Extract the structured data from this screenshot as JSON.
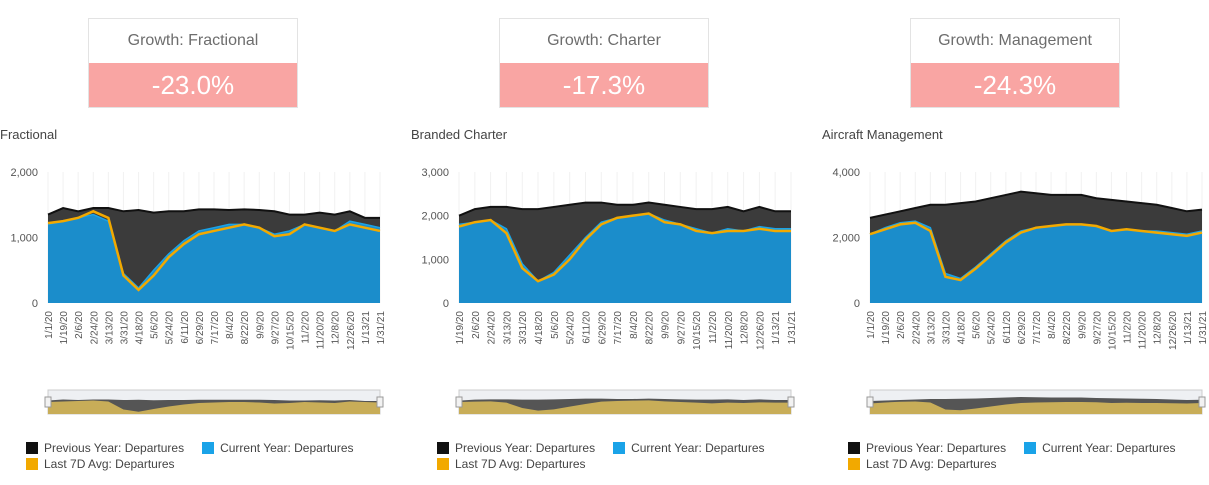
{
  "colors": {
    "previous_year": "#111111",
    "current_year": "#1aa3e8",
    "avg_line": "#f2a900",
    "current_fill": "#1b8dcb",
    "kpi_negative_bg": "#f9a5a3",
    "navigator_fill": "#c8ad58"
  },
  "kpis": [
    {
      "title": "Growth: Fractional",
      "value": "-23.0%"
    },
    {
      "title": "Growth: Charter",
      "value": "-17.3%"
    },
    {
      "title": "Growth: Management",
      "value": "-24.3%"
    }
  ],
  "legend": {
    "previous": "Previous Year: Departures",
    "current": "Current Year: Departures",
    "avg": "Last 7D Avg: Departures"
  },
  "chart_data": [
    {
      "type": "area",
      "title": "Fractional",
      "ylim": [
        0,
        2000
      ],
      "yticks": [
        "0",
        "1,000",
        "2,000"
      ],
      "ytick_values": [
        0,
        1000,
        2000
      ],
      "xtick_labels": [
        "1/1/20",
        "1/19/20",
        "2/6/20",
        "2/24/20",
        "3/13/20",
        "3/31/20",
        "4/18/20",
        "5/6/20",
        "5/24/20",
        "6/11/20",
        "6/29/20",
        "7/17/20",
        "8/4/20",
        "8/22/20",
        "9/9/20",
        "9/27/20",
        "10/15/20",
        "11/2/20",
        "11/20/20",
        "12/8/20",
        "12/26/20",
        "1/13/21",
        "1/31/21"
      ],
      "grid": "vertical",
      "legend_position": "bottom",
      "series": [
        {
          "name": "Previous Year: Departures",
          "x": [
            "1/1/20",
            "1/19/20",
            "2/6/20",
            "2/24/20",
            "3/13/20",
            "3/31/20",
            "4/18/20",
            "5/6/20",
            "5/24/20",
            "6/11/20",
            "6/29/20",
            "7/17/20",
            "8/4/20",
            "8/22/20",
            "9/9/20",
            "9/27/20",
            "10/15/20",
            "11/2/20",
            "11/20/20",
            "12/8/20",
            "12/26/20",
            "1/13/21",
            "1/31/21"
          ],
          "values": [
            1350,
            1450,
            1400,
            1450,
            1450,
            1400,
            1420,
            1380,
            1400,
            1400,
            1430,
            1430,
            1420,
            1430,
            1420,
            1400,
            1350,
            1350,
            1380,
            1350,
            1400,
            1300,
            1300
          ]
        },
        {
          "name": "Current Year: Departures",
          "x": [
            "1/1/20",
            "1/19/20",
            "2/6/20",
            "2/24/20",
            "3/13/20",
            "3/31/20",
            "4/18/20",
            "5/6/20",
            "5/24/20",
            "6/11/20",
            "6/29/20",
            "7/17/20",
            "8/4/20",
            "8/22/20",
            "9/9/20",
            "9/27/20",
            "10/15/20",
            "11/2/20",
            "11/20/20",
            "12/8/20",
            "12/26/20",
            "1/13/21",
            "1/31/21"
          ],
          "values": [
            1200,
            1250,
            1300,
            1350,
            1250,
            450,
            230,
            500,
            750,
            950,
            1100,
            1150,
            1200,
            1200,
            1150,
            1050,
            1100,
            1200,
            1150,
            1100,
            1250,
            1200,
            1150
          ]
        },
        {
          "name": "Last 7D Avg: Departures",
          "x": [
            "1/1/20",
            "1/19/20",
            "2/6/20",
            "2/24/20",
            "3/13/20",
            "3/31/20",
            "4/18/20",
            "5/6/20",
            "5/24/20",
            "6/11/20",
            "6/29/20",
            "7/17/20",
            "8/4/20",
            "8/22/20",
            "9/9/20",
            "9/27/20",
            "10/15/20",
            "11/2/20",
            "11/20/20",
            "12/8/20",
            "12/26/20",
            "1/13/21",
            "1/31/21"
          ],
          "values": [
            1220,
            1250,
            1300,
            1400,
            1300,
            420,
            200,
            420,
            700,
            900,
            1050,
            1100,
            1150,
            1200,
            1150,
            1020,
            1050,
            1200,
            1150,
            1100,
            1200,
            1150,
            1100
          ]
        }
      ]
    },
    {
      "type": "area",
      "title": "Branded Charter",
      "ylim": [
        0,
        3000
      ],
      "yticks": [
        "0",
        "1,000",
        "2,000",
        "3,000"
      ],
      "ytick_values": [
        0,
        1000,
        2000,
        3000
      ],
      "xtick_labels": [
        "1/19/20",
        "2/6/20",
        "2/24/20",
        "3/13/20",
        "3/31/20",
        "4/18/20",
        "5/6/20",
        "5/24/20",
        "6/11/20",
        "6/29/20",
        "7/17/20",
        "8/4/20",
        "8/22/20",
        "9/9/20",
        "9/27/20",
        "10/15/20",
        "11/2/20",
        "11/20/20",
        "12/8/20",
        "12/26/20",
        "1/13/21",
        "1/31/21"
      ],
      "grid": "vertical",
      "legend_position": "bottom",
      "series": [
        {
          "name": "Previous Year: Departures",
          "x": [
            "1/19/20",
            "2/6/20",
            "2/24/20",
            "3/13/20",
            "3/31/20",
            "4/18/20",
            "5/6/20",
            "5/24/20",
            "6/11/20",
            "6/29/20",
            "7/17/20",
            "8/4/20",
            "8/22/20",
            "9/9/20",
            "9/27/20",
            "10/15/20",
            "11/2/20",
            "11/20/20",
            "12/8/20",
            "12/26/20",
            "1/13/21",
            "1/31/21"
          ],
          "values": [
            2000,
            2150,
            2200,
            2200,
            2150,
            2150,
            2200,
            2250,
            2300,
            2300,
            2250,
            2250,
            2300,
            2250,
            2200,
            2150,
            2150,
            2200,
            2100,
            2200,
            2100,
            2100
          ]
        },
        {
          "name": "Current Year: Departures",
          "x": [
            "1/19/20",
            "2/6/20",
            "2/24/20",
            "3/13/20",
            "3/31/20",
            "4/18/20",
            "5/6/20",
            "5/24/20",
            "6/11/20",
            "6/29/20",
            "7/17/20",
            "8/4/20",
            "8/22/20",
            "9/9/20",
            "9/27/20",
            "10/15/20",
            "11/2/20",
            "11/20/20",
            "12/8/20",
            "12/26/20",
            "1/13/21",
            "1/31/21"
          ],
          "values": [
            1800,
            1850,
            1900,
            1700,
            900,
            500,
            700,
            1100,
            1500,
            1850,
            1950,
            2000,
            2050,
            1900,
            1800,
            1700,
            1600,
            1700,
            1650,
            1750,
            1700,
            1700
          ]
        },
        {
          "name": "Last 7D Avg: Departures",
          "x": [
            "1/19/20",
            "2/6/20",
            "2/24/20",
            "3/13/20",
            "3/31/20",
            "4/18/20",
            "5/6/20",
            "5/24/20",
            "6/11/20",
            "6/29/20",
            "7/17/20",
            "8/4/20",
            "8/22/20",
            "9/9/20",
            "9/27/20",
            "10/15/20",
            "11/2/20",
            "11/20/20",
            "12/8/20",
            "12/26/20",
            "1/13/21",
            "1/31/21"
          ],
          "values": [
            1750,
            1850,
            1900,
            1600,
            800,
            500,
            650,
            1000,
            1450,
            1800,
            1950,
            2000,
            2050,
            1850,
            1800,
            1650,
            1600,
            1650,
            1650,
            1700,
            1650,
            1650
          ]
        }
      ]
    },
    {
      "type": "area",
      "title": "Aircraft Management",
      "ylim": [
        0,
        4000
      ],
      "yticks": [
        "0",
        "2,000",
        "4,000"
      ],
      "ytick_values": [
        0,
        2000,
        4000
      ],
      "xtick_labels": [
        "1/1/20",
        "1/19/20",
        "2/6/20",
        "2/24/20",
        "3/13/20",
        "3/31/20",
        "4/18/20",
        "5/6/20",
        "5/24/20",
        "6/11/20",
        "6/29/20",
        "7/17/20",
        "8/4/20",
        "8/22/20",
        "9/9/20",
        "9/27/20",
        "10/15/20",
        "11/2/20",
        "11/20/20",
        "12/8/20",
        "12/26/20",
        "1/13/21",
        "1/31/21"
      ],
      "grid": "vertical",
      "legend_position": "bottom",
      "series": [
        {
          "name": "Previous Year: Departures",
          "x": [
            "1/1/20",
            "1/19/20",
            "2/6/20",
            "2/24/20",
            "3/13/20",
            "3/31/20",
            "4/18/20",
            "5/6/20",
            "5/24/20",
            "6/11/20",
            "6/29/20",
            "7/17/20",
            "8/4/20",
            "8/22/20",
            "9/9/20",
            "9/27/20",
            "10/15/20",
            "11/2/20",
            "11/20/20",
            "12/8/20",
            "12/26/20",
            "1/13/21",
            "1/31/21"
          ],
          "values": [
            2600,
            2700,
            2800,
            2900,
            3000,
            3000,
            3050,
            3100,
            3200,
            3300,
            3400,
            3350,
            3300,
            3300,
            3300,
            3200,
            3150,
            3100,
            3050,
            3000,
            2900,
            2800,
            2850
          ]
        },
        {
          "name": "Current Year: Departures",
          "x": [
            "1/1/20",
            "1/19/20",
            "2/6/20",
            "2/24/20",
            "3/13/20",
            "3/31/20",
            "4/18/20",
            "5/6/20",
            "5/24/20",
            "6/11/20",
            "6/29/20",
            "7/17/20",
            "8/4/20",
            "8/22/20",
            "9/9/20",
            "9/27/20",
            "10/15/20",
            "11/2/20",
            "11/20/20",
            "12/8/20",
            "12/26/20",
            "1/13/21",
            "1/31/21"
          ],
          "values": [
            2100,
            2300,
            2450,
            2500,
            2300,
            900,
            750,
            1100,
            1500,
            1900,
            2200,
            2300,
            2350,
            2400,
            2400,
            2350,
            2200,
            2250,
            2200,
            2200,
            2150,
            2100,
            2200
          ]
        },
        {
          "name": "Last 7D Avg: Departures",
          "x": [
            "1/1/20",
            "1/19/20",
            "2/6/20",
            "2/24/20",
            "3/13/20",
            "3/31/20",
            "4/18/20",
            "5/6/20",
            "5/24/20",
            "6/11/20",
            "6/29/20",
            "7/17/20",
            "8/4/20",
            "8/22/20",
            "9/9/20",
            "9/27/20",
            "10/15/20",
            "11/2/20",
            "11/20/20",
            "12/8/20",
            "12/26/20",
            "1/13/21",
            "1/31/21"
          ],
          "values": [
            2100,
            2250,
            2400,
            2450,
            2200,
            800,
            700,
            1050,
            1450,
            1850,
            2150,
            2300,
            2350,
            2400,
            2400,
            2350,
            2200,
            2250,
            2200,
            2150,
            2100,
            2050,
            2150
          ]
        }
      ]
    }
  ]
}
